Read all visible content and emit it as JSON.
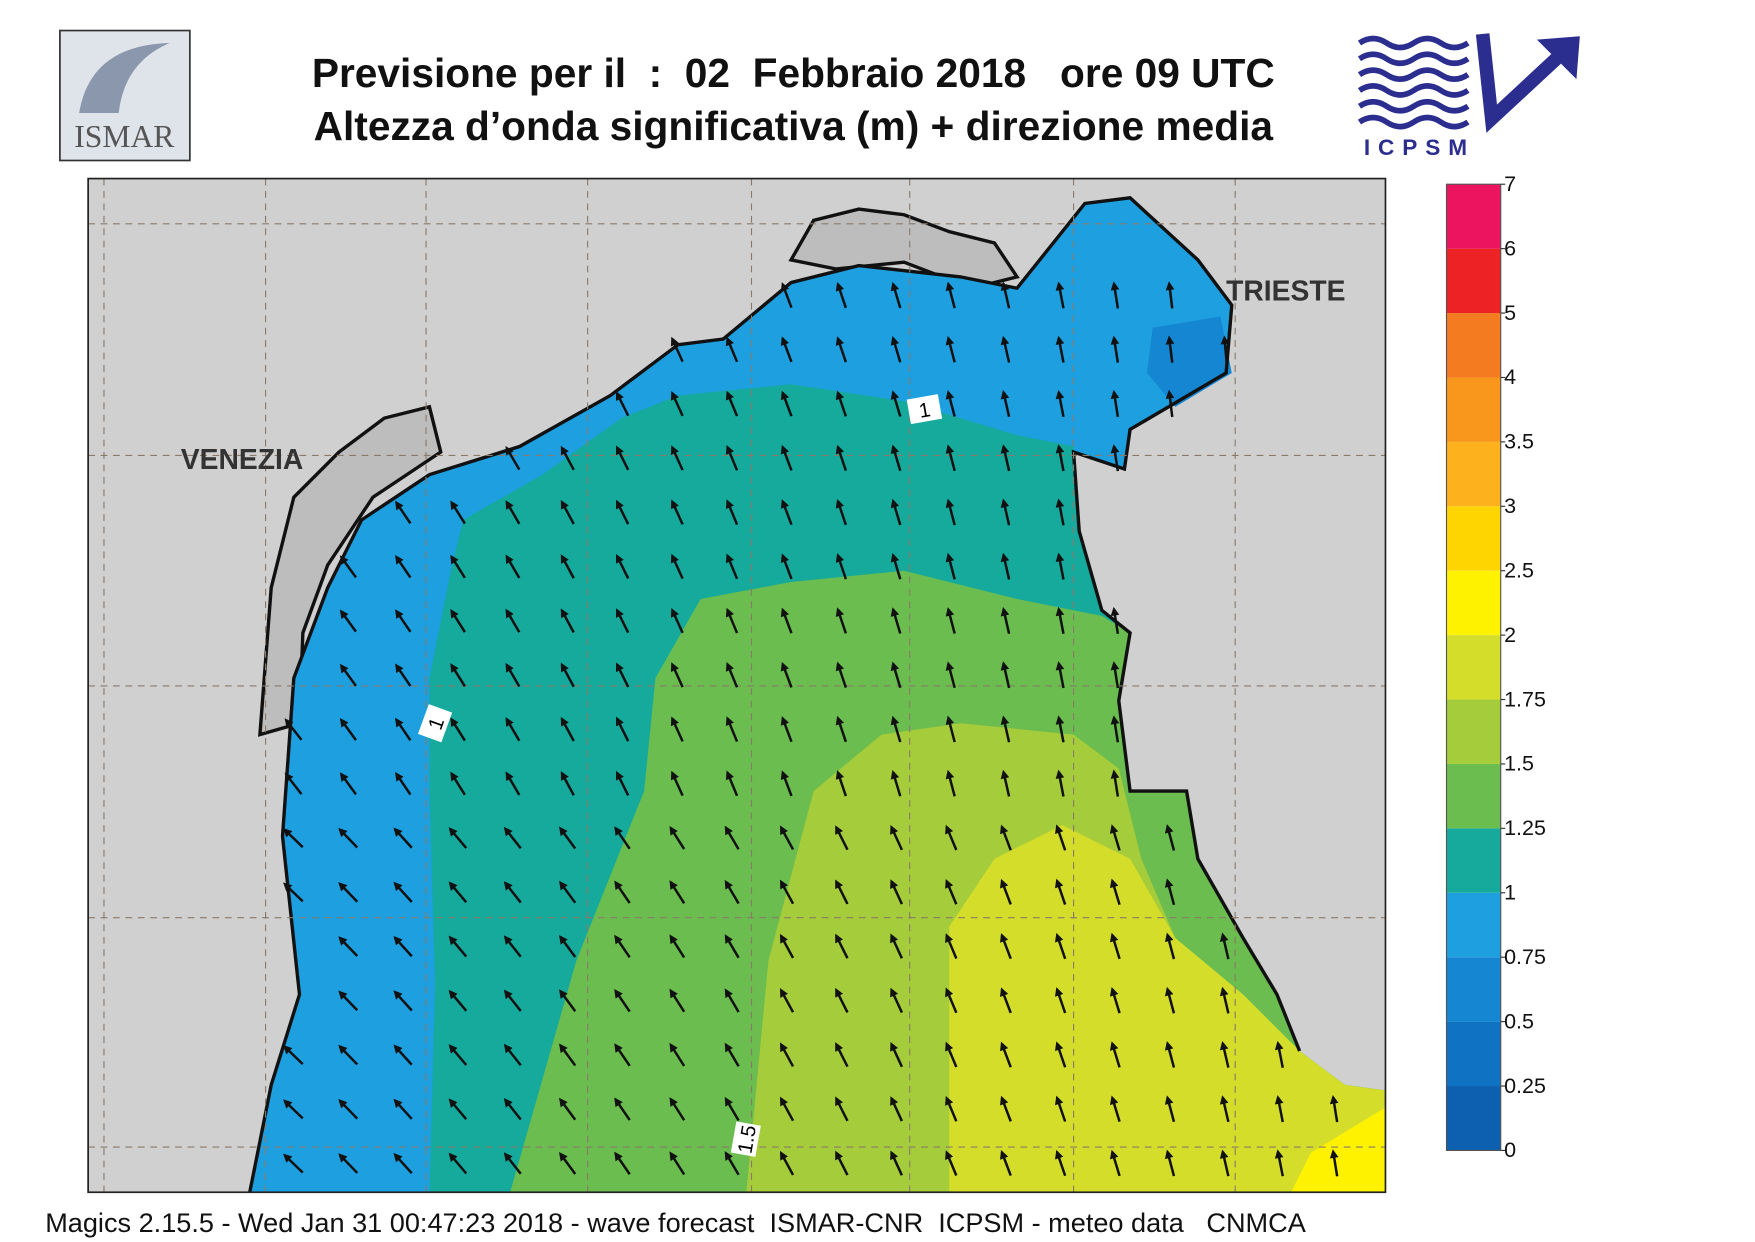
{
  "header": {
    "title": "Previsione per il  :  02  Febbraio 2018   ore 09 UTC",
    "subtitle": "Altezza d’onda significativa (m) + direzione media",
    "logo_left": "ISMAR",
    "logo_right": "ICPSM"
  },
  "map": {
    "places": [
      "VENEZIA",
      "TRIESTE"
    ],
    "contour_labels": [
      "1",
      "1",
      "1.5"
    ]
  },
  "colorbar": {
    "levels": [
      0,
      0.25,
      0.5,
      0.75,
      1,
      1.25,
      1.5,
      1.75,
      2,
      2.5,
      3,
      3.5,
      4,
      5,
      6,
      7
    ],
    "colors": [
      "#0d5fb0",
      "#0f72c2",
      "#1486d2",
      "#1d9fe0",
      "#15aa9c",
      "#6abd4e",
      "#a5cc3a",
      "#d4de2a",
      "#fff200",
      "#ffd500",
      "#fdb11c",
      "#f9961c",
      "#f47b20",
      "#ed2224",
      "#ec145f"
    ]
  },
  "footer": {
    "text": "Magics 2.15.5 - Wed Jan 31 00:47:23 2018 - wave forecast  ISMAR-CNR  ICPSM - meteo data   CNMCA"
  }
}
